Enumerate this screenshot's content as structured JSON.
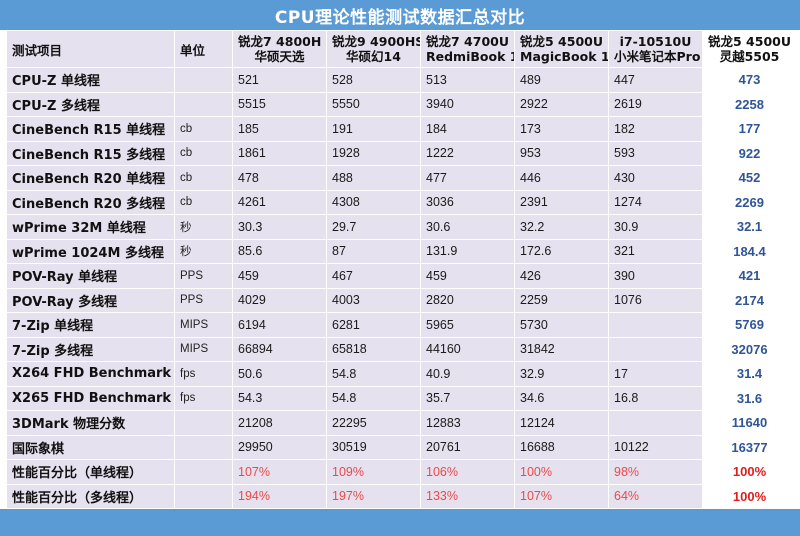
{
  "title": "CPU理论性能测试数据汇总对比",
  "columns": {
    "item": "测试项目",
    "unit": "单位",
    "models": [
      {
        "cpu": "锐龙7 4800H",
        "device": "华硕天选"
      },
      {
        "cpu": "锐龙9 4900HS",
        "device": "华硕幻14"
      },
      {
        "cpu": "锐龙7 4700U",
        "device": "RedmiBook 16"
      },
      {
        "cpu": "锐龙5 4500U",
        "device": "MagicBook 15"
      },
      {
        "cpu": "i7-10510U",
        "device": "小米笔记本Pro"
      },
      {
        "cpu": "锐龙5 4500U",
        "device": "灵越5505"
      }
    ]
  },
  "rows": [
    {
      "item": "CPU-Z 单线程",
      "unit": "",
      "values": [
        "521",
        "528",
        "513",
        "489",
        "447",
        "473"
      ]
    },
    {
      "item": "CPU-Z 多线程",
      "unit": "",
      "values": [
        "5515",
        "5550",
        "3940",
        "2922",
        "2619",
        "2258"
      ]
    },
    {
      "item": "CineBench R15 单线程",
      "unit": "cb",
      "values": [
        "185",
        "191",
        "184",
        "173",
        "182",
        "177"
      ]
    },
    {
      "item": "CineBench R15 多线程",
      "unit": "cb",
      "values": [
        "1861",
        "1928",
        "1222",
        "953",
        "593",
        "922"
      ]
    },
    {
      "item": "CineBench R20 单线程",
      "unit": "cb",
      "values": [
        "478",
        "488",
        "477",
        "446",
        "430",
        "452"
      ]
    },
    {
      "item": "CineBench R20 多线程",
      "unit": "cb",
      "values": [
        "4261",
        "4308",
        "3036",
        "2391",
        "1274",
        "2269"
      ]
    },
    {
      "item": "wPrime 32M 单线程",
      "unit": "秒",
      "values": [
        "30.3",
        "29.7",
        "30.6",
        "32.2",
        "30.9",
        "32.1"
      ]
    },
    {
      "item": "wPrime 1024M 多线程",
      "unit": "秒",
      "values": [
        "85.6",
        "87",
        "131.9",
        "172.6",
        "321",
        "184.4"
      ]
    },
    {
      "item": "POV-Ray 单线程",
      "unit": "PPS",
      "values": [
        "459",
        "467",
        "459",
        "426",
        "390",
        "421"
      ]
    },
    {
      "item": "POV-Ray 多线程",
      "unit": "PPS",
      "values": [
        "4029",
        "4003",
        "2820",
        "2259",
        "1076",
        "2174"
      ]
    },
    {
      "item": "7-Zip 单线程",
      "unit": "MIPS",
      "values": [
        "6194",
        "6281",
        "5965",
        "5730",
        "",
        "5769"
      ]
    },
    {
      "item": "7-Zip 多线程",
      "unit": "MIPS",
      "values": [
        "66894",
        "65818",
        "44160",
        "31842",
        "",
        "32076"
      ]
    },
    {
      "item": "X264 FHD Benchmark",
      "unit": "fps",
      "values": [
        "50.6",
        "54.8",
        "40.9",
        "32.9",
        "17",
        "31.4"
      ]
    },
    {
      "item": "X265 FHD Benchmark",
      "unit": "fps",
      "values": [
        "54.3",
        "54.8",
        "35.7",
        "34.6",
        "16.8",
        "31.6"
      ]
    },
    {
      "item": "3DMark 物理分数",
      "unit": "",
      "values": [
        "21208",
        "22295",
        "12883",
        "12124",
        "",
        "11640"
      ]
    },
    {
      "item": "国际象棋",
      "unit": "",
      "values": [
        "29950",
        "30519",
        "20761",
        "16688",
        "10122",
        "16377"
      ]
    },
    {
      "item": "性能百分比（单线程）",
      "unit": "",
      "red": true,
      "values": [
        "107%",
        "109%",
        "106%",
        "100%",
        "98%",
        "100%"
      ]
    },
    {
      "item": "性能百分比（多线程）",
      "unit": "",
      "red": true,
      "values": [
        "194%",
        "197%",
        "133%",
        "107%",
        "64%",
        "100%"
      ]
    }
  ],
  "colors": {
    "title_bar": "#5b9bd5",
    "cell_background": "#e6e1ee",
    "highlight_column_background": "#ffffff",
    "highlight_text": "#2f5597",
    "percent_text": "#e84a4a"
  }
}
